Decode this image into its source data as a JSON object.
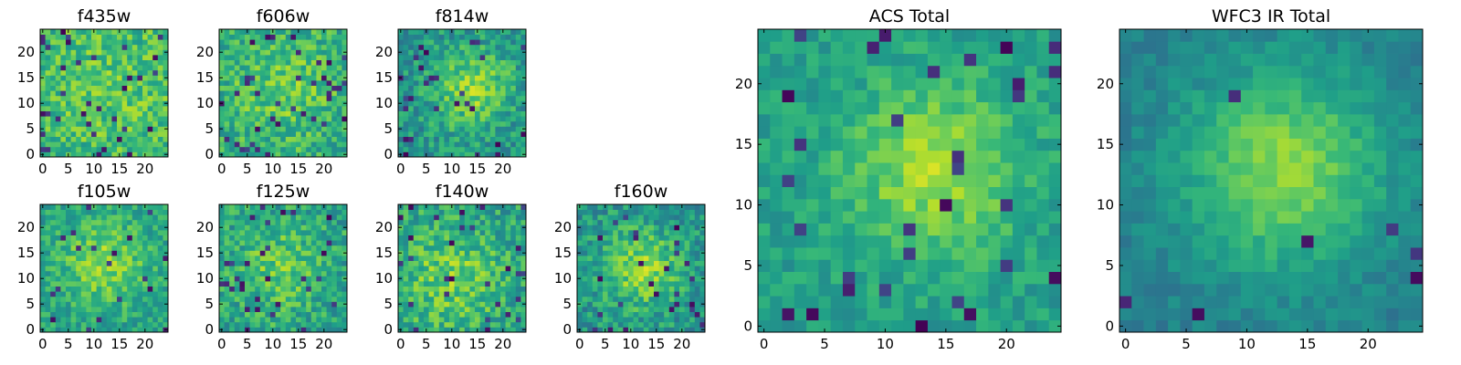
{
  "chart_data": [
    {
      "type": "heatmap",
      "title": "f435w",
      "xticks": [
        "0",
        "5",
        "10",
        "15",
        "20"
      ],
      "yticks": [
        "0",
        "5",
        "10",
        "15",
        "20"
      ],
      "xlim": [
        -0.5,
        24.5
      ],
      "ylim": [
        -0.5,
        24.5
      ],
      "grid_size": [
        25,
        25
      ],
      "colormap": "viridis",
      "grid": false,
      "pattern": {
        "seed": 11,
        "center": [
          13,
          13
        ],
        "sigma": 9,
        "amplitude": 0.08,
        "base": 0.66,
        "noise": 0.17,
        "dark_fraction": 0.05
      }
    },
    {
      "type": "heatmap",
      "title": "f606w",
      "xticks": [
        "0",
        "5",
        "10",
        "15",
        "20"
      ],
      "yticks": [
        "0",
        "5",
        "10",
        "15",
        "20"
      ],
      "xlim": [
        -0.5,
        24.5
      ],
      "ylim": [
        -0.5,
        24.5
      ],
      "grid_size": [
        25,
        25
      ],
      "colormap": "viridis",
      "grid": false,
      "pattern": {
        "seed": 23,
        "center": [
          12,
          13
        ],
        "sigma": 7,
        "amplitude": 0.14,
        "base": 0.62,
        "noise": 0.17,
        "dark_fraction": 0.05
      }
    },
    {
      "type": "heatmap",
      "title": "f814w",
      "xticks": [
        "0",
        "5",
        "10",
        "15",
        "20"
      ],
      "yticks": [
        "0",
        "5",
        "10",
        "15",
        "20"
      ],
      "xlim": [
        -0.5,
        24.5
      ],
      "ylim": [
        -0.5,
        24.5
      ],
      "grid_size": [
        25,
        25
      ],
      "colormap": "viridis",
      "grid": false,
      "pattern": {
        "seed": 37,
        "center": [
          14,
          13
        ],
        "sigma": 5.5,
        "amplitude": 0.3,
        "base": 0.52,
        "noise": 0.16,
        "dark_fraction": 0.05
      }
    },
    {
      "type": "heatmap",
      "title": "f105w",
      "xticks": [
        "0",
        "5",
        "10",
        "15",
        "20"
      ],
      "yticks": [
        "0",
        "5",
        "10",
        "15",
        "20"
      ],
      "xlim": [
        -0.5,
        24.5
      ],
      "ylim": [
        -0.5,
        24.5
      ],
      "grid_size": [
        25,
        25
      ],
      "colormap": "viridis",
      "grid": false,
      "pattern": {
        "seed": 41,
        "center": [
          12,
          13
        ],
        "sigma": 6,
        "amplitude": 0.25,
        "base": 0.57,
        "noise": 0.14,
        "dark_fraction": 0.04
      }
    },
    {
      "type": "heatmap",
      "title": "f125w",
      "xticks": [
        "0",
        "5",
        "10",
        "15",
        "20"
      ],
      "yticks": [
        "0",
        "5",
        "10",
        "15",
        "20"
      ],
      "xlim": [
        -0.5,
        24.5
      ],
      "ylim": [
        -0.5,
        24.5
      ],
      "grid_size": [
        25,
        25
      ],
      "colormap": "viridis",
      "grid": false,
      "pattern": {
        "seed": 53,
        "center": [
          12,
          12
        ],
        "sigma": 6,
        "amplitude": 0.18,
        "base": 0.58,
        "noise": 0.17,
        "dark_fraction": 0.06
      }
    },
    {
      "type": "heatmap",
      "title": "f140w",
      "xticks": [
        "0",
        "5",
        "10",
        "15",
        "20"
      ],
      "yticks": [
        "0",
        "5",
        "10",
        "15",
        "20"
      ],
      "xlim": [
        -0.5,
        24.5
      ],
      "ylim": [
        -0.5,
        24.5
      ],
      "grid_size": [
        25,
        25
      ],
      "colormap": "viridis",
      "grid": false,
      "pattern": {
        "seed": 67,
        "center": [
          10,
          10
        ],
        "sigma": 7,
        "amplitude": 0.2,
        "base": 0.58,
        "noise": 0.17,
        "dark_fraction": 0.04
      }
    },
    {
      "type": "heatmap",
      "title": "f160w",
      "xticks": [
        "0",
        "5",
        "10",
        "15",
        "20"
      ],
      "yticks": [
        "0",
        "5",
        "10",
        "15",
        "20"
      ],
      "xlim": [
        -0.5,
        24.5
      ],
      "ylim": [
        -0.5,
        24.5
      ],
      "grid_size": [
        25,
        25
      ],
      "colormap": "viridis",
      "grid": false,
      "pattern": {
        "seed": 79,
        "center": [
          12,
          12
        ],
        "sigma": 5.5,
        "amplitude": 0.3,
        "base": 0.52,
        "noise": 0.16,
        "dark_fraction": 0.05
      }
    },
    {
      "type": "heatmap",
      "title": "ACS Total",
      "xticks": [
        "0",
        "5",
        "10",
        "15",
        "20"
      ],
      "yticks": [
        "0",
        "5",
        "10",
        "15",
        "20"
      ],
      "xlim": [
        -0.5,
        24.5
      ],
      "ylim": [
        -0.5,
        24.5
      ],
      "grid_size": [
        25,
        25
      ],
      "colormap": "viridis",
      "grid": false,
      "pattern": {
        "seed": 97,
        "center": [
          14,
          13
        ],
        "sigma": 5,
        "amplitude": 0.3,
        "base": 0.56,
        "noise": 0.1,
        "dark_fraction": 0.05
      }
    },
    {
      "type": "heatmap",
      "title": "WFC3 IR Total",
      "xticks": [
        "0",
        "5",
        "10",
        "15",
        "20"
      ],
      "yticks": [
        "0",
        "5",
        "10",
        "15",
        "20"
      ],
      "xlim": [
        -0.5,
        24.5
      ],
      "ylim": [
        -0.5,
        24.5
      ],
      "grid_size": [
        25,
        25
      ],
      "colormap": "viridis",
      "grid": false,
      "pattern": {
        "seed": 113,
        "center": [
          13,
          13
        ],
        "sigma": 6,
        "amplitude": 0.4,
        "base": 0.42,
        "noise": 0.07,
        "dark_fraction": 0.015
      }
    }
  ]
}
